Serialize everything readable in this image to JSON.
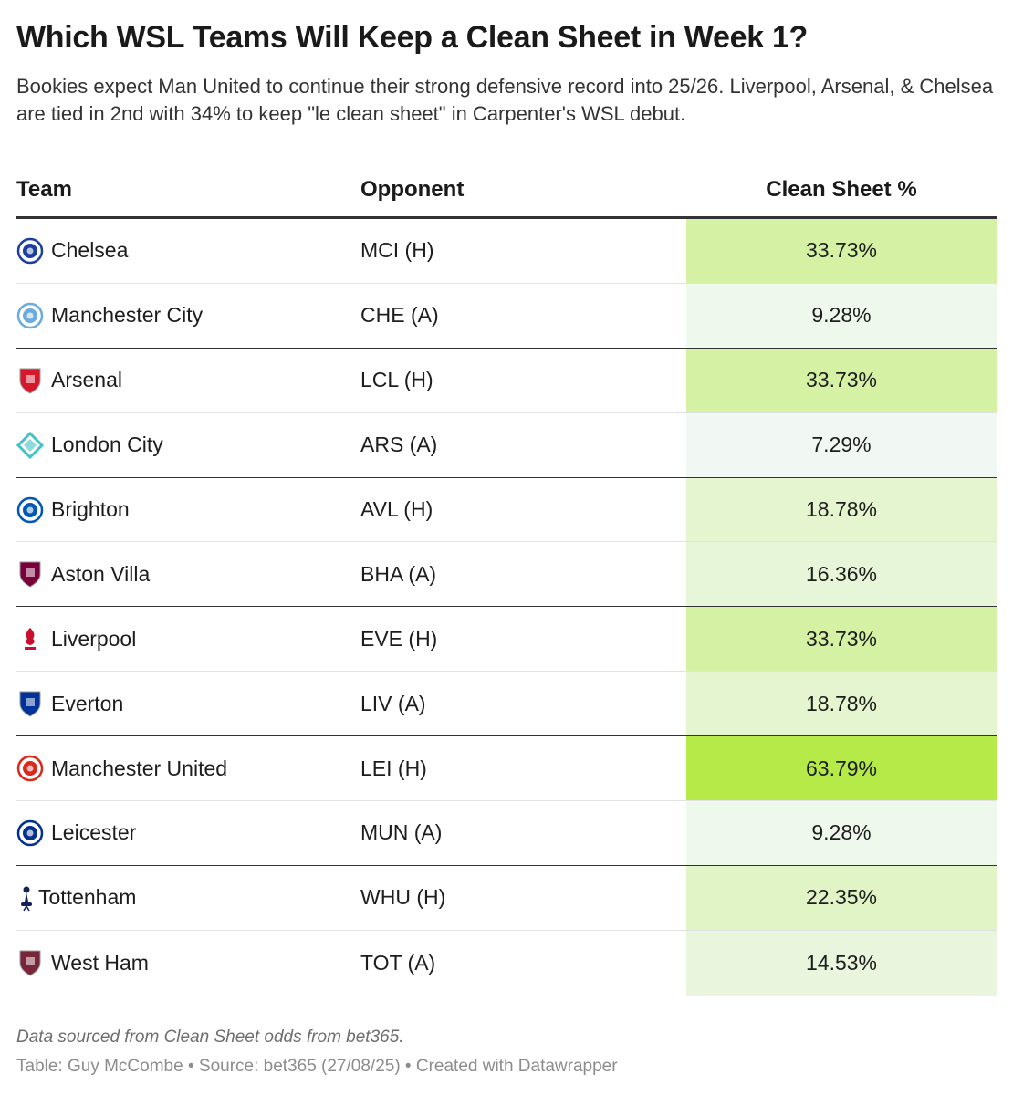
{
  "title": "Which WSL Teams Will Keep a Clean Sheet in Week 1?",
  "subtitle": "Bookies expect Man United to continue their strong defensive record into 25/26. Liverpool, Arsenal, & Chelsea are tied in 2nd with 34% to keep \"le clean sheet\" in Carpenter's WSL debut.",
  "columns": {
    "team": "Team",
    "opponent": "Opponent",
    "clean_sheet": "Clean Sheet %"
  },
  "rows": [
    {
      "team": "Chelsea",
      "opponent": "MCI (H)",
      "clean_sheet": "33.73%",
      "crest": "chelsea-crest-icon",
      "crest_color": "#1b3fa0"
    },
    {
      "team": "Manchester City",
      "opponent": "CHE (A)",
      "clean_sheet": "9.28%",
      "crest": "manchester-city-crest-icon",
      "crest_color": "#6cabdd"
    },
    {
      "team": "Arsenal",
      "opponent": "LCL (H)",
      "clean_sheet": "33.73%",
      "crest": "arsenal-crest-icon",
      "crest_color": "#d7182a"
    },
    {
      "team": "London City",
      "opponent": "ARS (A)",
      "clean_sheet": "7.29%",
      "crest": "london-city-crest-icon",
      "crest_color": "#45c1c9"
    },
    {
      "team": "Brighton",
      "opponent": "AVL (H)",
      "clean_sheet": "18.78%",
      "crest": "brighton-crest-icon",
      "crest_color": "#0057b8"
    },
    {
      "team": "Aston Villa",
      "opponent": "BHA (A)",
      "clean_sheet": "16.36%",
      "crest": "aston-villa-crest-icon",
      "crest_color": "#7a003c"
    },
    {
      "team": "Liverpool",
      "opponent": "EVE (H)",
      "clean_sheet": "33.73%",
      "crest": "liverpool-crest-icon",
      "crest_color": "#c8102e"
    },
    {
      "team": "Everton",
      "opponent": "LIV (A)",
      "clean_sheet": "18.78%",
      "crest": "everton-crest-icon",
      "crest_color": "#003399"
    },
    {
      "team": "Manchester United",
      "opponent": "LEI (H)",
      "clean_sheet": "63.79%",
      "crest": "manchester-united-crest-icon",
      "crest_color": "#da291c"
    },
    {
      "team": "Leicester",
      "opponent": "MUN (A)",
      "clean_sheet": "9.28%",
      "crest": "leicester-crest-icon",
      "crest_color": "#003090"
    },
    {
      "team": "Tottenham",
      "opponent": "WHU (H)",
      "clean_sheet": "22.35%",
      "crest": "tottenham-crest-icon",
      "crest_color": "#132257"
    },
    {
      "team": "West Ham",
      "opponent": "TOT (A)",
      "clean_sheet": "14.53%",
      "crest": "west-ham-crest-icon",
      "crest_color": "#7a263a"
    }
  ],
  "notes": "Data sourced from Clean Sheet odds from bet365.",
  "footer": "Table: Guy McCombe • Source: bet365 (27/08/25) • Created with Datawrapper",
  "colors": {
    "heat_low": "#f1f8f3",
    "heat_high": "#b5ea48",
    "group_divider": "#333333"
  },
  "chart_data": {
    "type": "table",
    "title": "Which WSL Teams Will Keep a Clean Sheet in Week 1?",
    "columns": [
      "Team",
      "Opponent",
      "Clean Sheet %"
    ],
    "rows": [
      [
        "Chelsea",
        "MCI (H)",
        33.73
      ],
      [
        "Manchester City",
        "CHE (A)",
        9.28
      ],
      [
        "Arsenal",
        "LCL (H)",
        33.73
      ],
      [
        "London City",
        "ARS (A)",
        7.29
      ],
      [
        "Brighton",
        "AVL (H)",
        18.78
      ],
      [
        "Aston Villa",
        "BHA (A)",
        16.36
      ],
      [
        "Liverpool",
        "EVE (H)",
        33.73
      ],
      [
        "Everton",
        "LIV (A)",
        18.78
      ],
      [
        "Manchester United",
        "LEI (H)",
        63.79
      ],
      [
        "Leicester",
        "MUN (A)",
        9.28
      ],
      [
        "Tottenham",
        "WHU (H)",
        22.35
      ],
      [
        "West Ham",
        "TOT (A)",
        14.53
      ]
    ],
    "value_column": "Clean Sheet %",
    "value_unit": "%",
    "heatmap_color_scale": [
      "#f1f8f3",
      "#b5ea48"
    ]
  }
}
